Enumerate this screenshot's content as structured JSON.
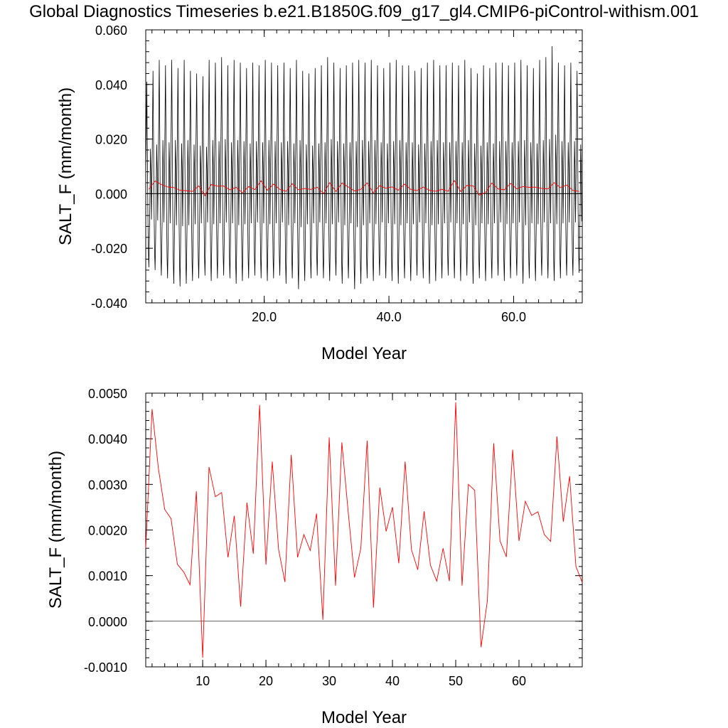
{
  "title": "Global Diagnostics Timeseries b.e21.B1850G.f09_g17_gl4.CMIP6-piControl-withism.001",
  "colors": {
    "monthly": "#000000",
    "annual": "#ff0000",
    "zero_line": "#000000"
  },
  "chart_data": [
    {
      "type": "line",
      "xlabel": "Model Year",
      "ylabel": "SALT_F (mm/month)",
      "xlim": [
        1,
        71
      ],
      "ylim": [
        -0.04,
        0.06
      ],
      "xticks": [
        "20.0",
        "40.0",
        "60.0"
      ],
      "yticks": [
        "-0.040",
        "-0.020",
        "0.000",
        "0.020",
        "0.040",
        "0.060"
      ],
      "hline": 0,
      "monthly_peaks": [
        0.041,
        0.045,
        0.049,
        0.047,
        0.049,
        0.046,
        0.049,
        0.045,
        0.044,
        0.043,
        0.049,
        0.048,
        0.05,
        0.047,
        0.049,
        0.048,
        0.046,
        0.048,
        0.047,
        0.049,
        0.048,
        0.047,
        0.048,
        0.046,
        0.049,
        0.045,
        0.044,
        0.046,
        0.047,
        0.05,
        0.048,
        0.046,
        0.047,
        0.048,
        0.049,
        0.048,
        0.049,
        0.047,
        0.046,
        0.048,
        0.049,
        0.047,
        0.047,
        0.045,
        0.046,
        0.048,
        0.049,
        0.047,
        0.047,
        0.048,
        0.047,
        0.049,
        0.046,
        0.044,
        0.047,
        0.046,
        0.048,
        0.048,
        0.047,
        0.048,
        0.049,
        0.047,
        0.046,
        0.049,
        0.05,
        0.054,
        0.048,
        0.047,
        0.048,
        0.045
      ],
      "monthly_troughs": [
        -0.027,
        -0.028,
        -0.03,
        -0.031,
        -0.033,
        -0.034,
        -0.033,
        -0.032,
        -0.031,
        -0.03,
        -0.032,
        -0.031,
        -0.03,
        -0.031,
        -0.033,
        -0.032,
        -0.031,
        -0.03,
        -0.031,
        -0.032,
        -0.031,
        -0.03,
        -0.033,
        -0.031,
        -0.035,
        -0.032,
        -0.031,
        -0.03,
        -0.031,
        -0.032,
        -0.03,
        -0.033,
        -0.031,
        -0.035,
        -0.033,
        -0.031,
        -0.032,
        -0.03,
        -0.031,
        -0.032,
        -0.033,
        -0.031,
        -0.032,
        -0.03,
        -0.031,
        -0.033,
        -0.032,
        -0.031,
        -0.03,
        -0.031,
        -0.032,
        -0.03,
        -0.033,
        -0.031,
        -0.032,
        -0.031,
        -0.03,
        -0.032,
        -0.031,
        -0.03,
        -0.033,
        -0.031,
        -0.032,
        -0.03,
        -0.031,
        -0.032,
        -0.031,
        -0.03,
        -0.03,
        -0.029
      ],
      "annual_overlay": "same as panel 2 values"
    },
    {
      "type": "line",
      "xlabel": "Model Year",
      "ylabel": "SALT_F (mm/month)",
      "xlim": [
        1,
        70
      ],
      "ylim": [
        -0.001,
        0.005
      ],
      "xticks": [
        "10",
        "20",
        "30",
        "40",
        "50",
        "60"
      ],
      "yticks": [
        "-0.0010",
        "0.0000",
        "0.0010",
        "0.0020",
        "0.0030",
        "0.0040",
        "0.0050"
      ],
      "hline": 0,
      "x": [
        1,
        2,
        3,
        4,
        5,
        6,
        7,
        8,
        9,
        10,
        11,
        12,
        13,
        14,
        15,
        16,
        17,
        18,
        19,
        20,
        21,
        22,
        23,
        24,
        25,
        26,
        27,
        28,
        29,
        30,
        31,
        32,
        33,
        34,
        35,
        36,
        37,
        38,
        39,
        40,
        41,
        42,
        43,
        44,
        45,
        46,
        47,
        48,
        49,
        50,
        51,
        52,
        53,
        54,
        55,
        56,
        57,
        58,
        59,
        60,
        61,
        62,
        63,
        64,
        65,
        66,
        67,
        68,
        69,
        70
      ],
      "y": [
        0.0016,
        0.00465,
        0.00335,
        0.00245,
        0.00225,
        0.00125,
        0.00108,
        0.0008,
        0.00285,
        -0.0008,
        0.00338,
        0.00273,
        0.00282,
        0.0014,
        0.00231,
        0.00032,
        0.0026,
        0.00148,
        0.00474,
        0.00124,
        0.0035,
        0.00157,
        0.00086,
        0.00365,
        0.0014,
        0.0019,
        0.00155,
        0.00236,
        3e-05,
        0.00403,
        0.00078,
        0.00392,
        0.0024,
        0.00096,
        0.0016,
        0.00396,
        0.0003,
        0.00293,
        0.00197,
        0.0025,
        0.00127,
        0.0035,
        0.00157,
        0.00113,
        0.00241,
        0.00123,
        0.00088,
        0.0016,
        0.00088,
        0.0048,
        0.00078,
        0.003,
        0.00287,
        -0.00057,
        0.00045,
        0.0039,
        0.00176,
        0.00141,
        0.00376,
        0.00176,
        0.00263,
        0.00232,
        0.0024,
        0.0019,
        0.00175,
        0.00405,
        0.00218,
        0.00318,
        0.0012,
        0.00085
      ]
    }
  ]
}
